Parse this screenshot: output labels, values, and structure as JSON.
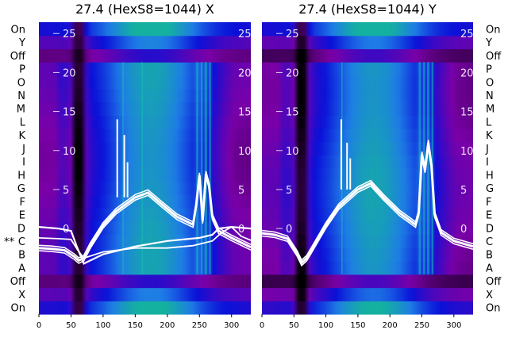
{
  "chart_data": [
    {
      "type": "heatmap",
      "title": "27.4 (HexS8=1044) X",
      "x_ticks": [
        0,
        50,
        100,
        150,
        200,
        250,
        300
      ],
      "xlim": [
        0,
        330
      ],
      "rows": [
        "On",
        "X",
        "Off",
        "A",
        "B",
        "C",
        "D",
        "E",
        "F",
        "G",
        "H",
        "I",
        "J",
        "K",
        "L",
        "M",
        "N",
        "O",
        "P",
        "Off",
        "Y",
        "On"
      ],
      "row_marks": {
        "C": "**"
      },
      "y_ticks_inner": [
        0,
        5,
        10,
        15,
        20,
        25
      ],
      "colormap": [
        "#000000",
        "#7a00a8",
        "#0a10d8",
        "#1e7ce6",
        "#14b0a0"
      ],
      "profile": {
        "x": [
          0,
          20,
          40,
          55,
          62,
          70,
          80,
          100,
          120,
          150,
          170,
          190,
          215,
          240,
          245,
          250,
          255,
          260,
          265,
          270,
          280,
          300,
          330
        ],
        "mean": [
          -2.5,
          -2.6,
          -2.8,
          -3.6,
          -4.1,
          -3.8,
          -2.2,
          0.4,
          2.2,
          4.0,
          4.6,
          3.2,
          1.5,
          0.5,
          3.0,
          6.8,
          1.0,
          7.0,
          5.5,
          1.5,
          -0.3,
          -1.2,
          -2.4
        ]
      },
      "baseline": {
        "x": [
          0,
          30,
          50,
          60,
          70,
          100,
          150,
          200,
          240,
          270,
          285,
          300,
          315,
          330
        ],
        "mean": [
          -1.2,
          -1.3,
          -1.4,
          -2.7,
          -3.8,
          -3.0,
          -2.5,
          -2.5,
          -2.2,
          -1.6,
          -0.5,
          0.2,
          -1.0,
          -1.5
        ]
      },
      "flat_line": {
        "x": [
          0,
          30,
          50,
          60,
          70,
          100,
          150,
          200,
          250,
          270,
          280,
          300,
          330
        ],
        "mean": [
          0.2,
          0.0,
          -0.3,
          -2.5,
          -4.5,
          -3.3,
          -2.3,
          -1.6,
          -1.2,
          -0.8,
          0.0,
          0.2,
          0.0
        ]
      },
      "spikes": [
        {
          "x": 122,
          "y": 14
        },
        {
          "x": 133,
          "y": 12
        },
        {
          "x": 138,
          "y": 8.5
        }
      ],
      "bright_columns": [
        {
          "x0": 245,
          "x1": 248
        },
        {
          "x0": 252,
          "x1": 255
        },
        {
          "x0": 258,
          "x1": 262
        },
        {
          "x0": 265,
          "x1": 268
        },
        {
          "x0": 130,
          "x1": 132
        },
        {
          "x0": 160,
          "x1": 162
        }
      ]
    },
    {
      "type": "heatmap",
      "title": "27.4 (HexS8=1044) Y",
      "x_ticks": [
        0,
        50,
        100,
        150,
        200,
        250,
        300
      ],
      "xlim": [
        0,
        330
      ],
      "rows": [
        "On",
        "X",
        "Off",
        "A",
        "B",
        "C",
        "D",
        "E",
        "F",
        "G",
        "H",
        "I",
        "J",
        "K",
        "L",
        "M",
        "N",
        "O",
        "P",
        "Off",
        "Y",
        "On"
      ],
      "y_ticks_inner": [
        0,
        5,
        10,
        15,
        20,
        25
      ],
      "colormap": [
        "#000000",
        "#7a00a8",
        "#0a10d8",
        "#1e7ce6",
        "#14b0a0"
      ],
      "profile": {
        "x": [
          0,
          20,
          40,
          55,
          62,
          70,
          80,
          100,
          120,
          150,
          170,
          190,
          215,
          240,
          245,
          250,
          255,
          260,
          265,
          270,
          280,
          300,
          330
        ],
        "mean": [
          -0.6,
          -0.8,
          -1.3,
          -3.2,
          -4.4,
          -3.8,
          -2.4,
          0.4,
          2.8,
          5.0,
          5.8,
          4.0,
          2.0,
          0.5,
          2.0,
          9.5,
          7.5,
          11.0,
          8.0,
          1.8,
          -0.5,
          -1.6,
          -2.3
        ]
      },
      "spikes": [
        {
          "x": 124,
          "y": 14
        },
        {
          "x": 133,
          "y": 11
        },
        {
          "x": 138,
          "y": 9
        }
      ],
      "bright_columns": [
        {
          "x0": 245,
          "x1": 248
        },
        {
          "x0": 252,
          "x1": 255
        },
        {
          "x0": 258,
          "x1": 262
        },
        {
          "x0": 265,
          "x1": 268
        },
        {
          "x0": 124,
          "x1": 126
        }
      ]
    }
  ]
}
